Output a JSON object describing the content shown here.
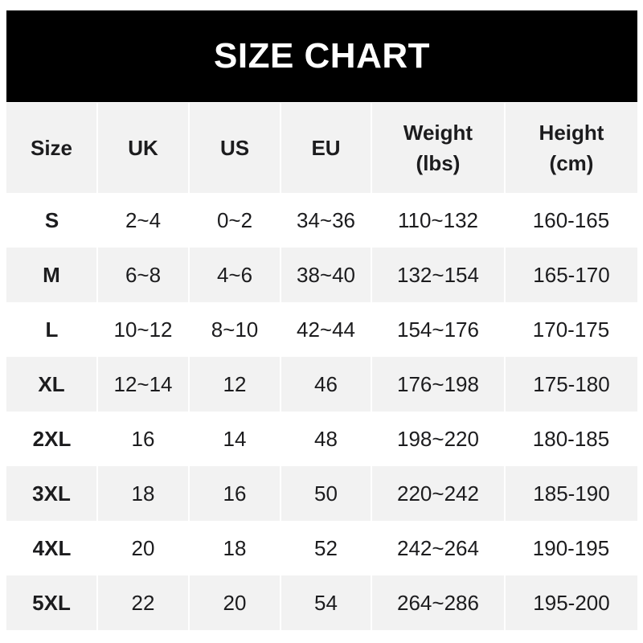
{
  "chart_data": {
    "type": "table",
    "title": "SIZE CHART",
    "columns": [
      "Size",
      "UK",
      "US",
      "EU",
      "Weight\n(lbs)",
      "Height\n(cm)"
    ],
    "rows": [
      [
        "S",
        "2~4",
        "0~2",
        "34~36",
        "110~132",
        "160-165"
      ],
      [
        "M",
        "6~8",
        "4~6",
        "38~40",
        "132~154",
        "165-170"
      ],
      [
        "L",
        "10~12",
        "8~10",
        "42~44",
        "154~176",
        "170-175"
      ],
      [
        "XL",
        "12~14",
        "12",
        "46",
        "176~198",
        "175-180"
      ],
      [
        "2XL",
        "16",
        "14",
        "48",
        "198~220",
        "180-185"
      ],
      [
        "3XL",
        "18",
        "16",
        "50",
        "220~242",
        "185-190"
      ],
      [
        "4XL",
        "20",
        "18",
        "52",
        "242~264",
        "190-195"
      ],
      [
        "5XL",
        "22",
        "20",
        "54",
        "264~286",
        "195-200"
      ]
    ]
  },
  "header_labels": {
    "weight_line1": "Weight",
    "weight_line2": "(lbs)",
    "height_line1": "Height",
    "height_line2": "(cm)"
  },
  "colors": {
    "title_bg": "#000000",
    "stripe": "#f2f2f2",
    "text": "#1c1c1e"
  }
}
